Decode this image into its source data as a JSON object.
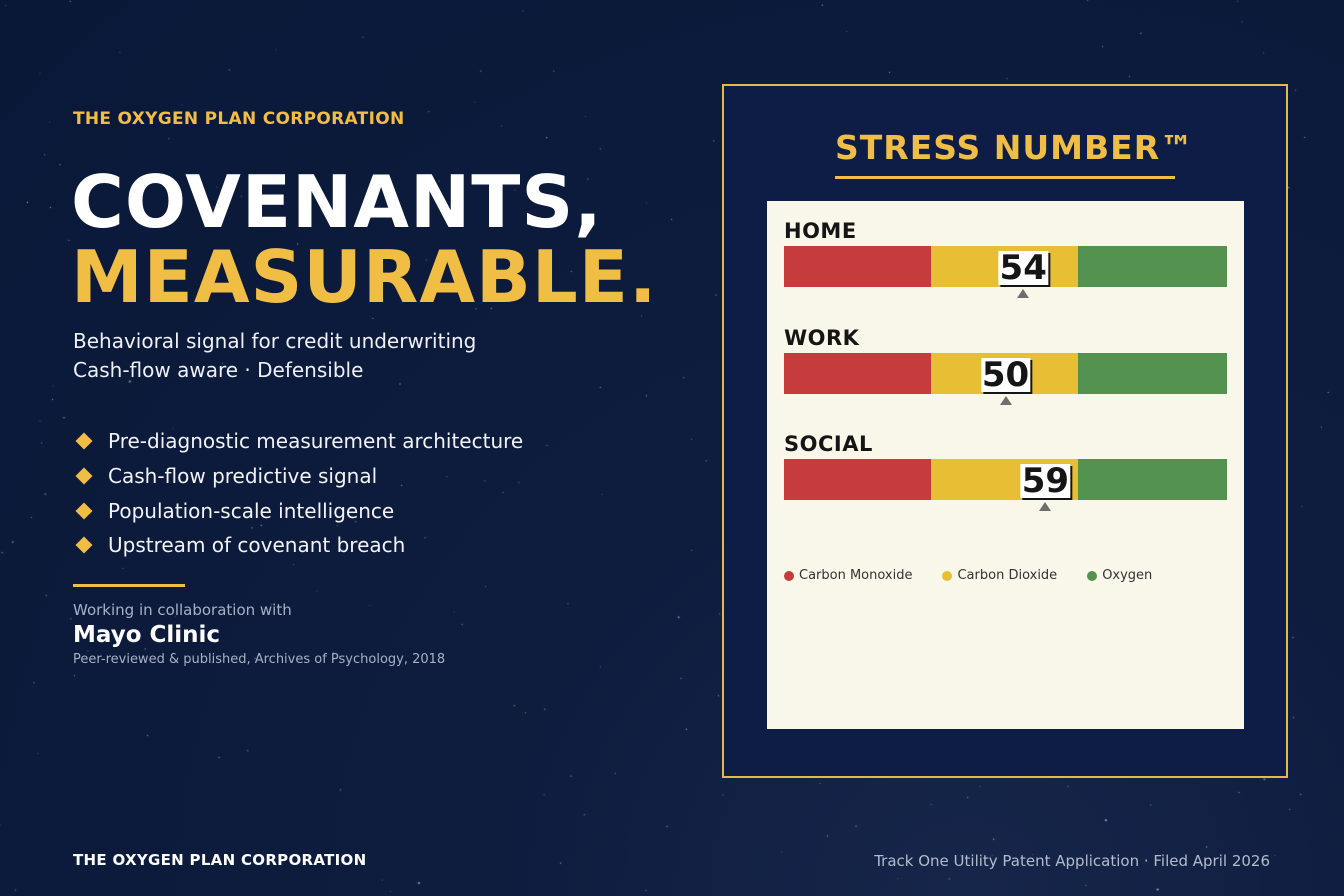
{
  "company": "THE OXYGEN PLAN CORPORATION",
  "headline": {
    "line1": "COVENANTS,",
    "line2": "MEASURABLE."
  },
  "subtitle": {
    "line1": "Behavioral signal for credit underwriting",
    "line2": "Cash-flow aware  ·  Defensible"
  },
  "features": [
    "Pre-diagnostic measurement architecture",
    "Cash-flow predictive signal",
    "Population-scale intelligence",
    "Upstream of covenant breach"
  ],
  "collaboration": {
    "label": "Working in collaboration with",
    "partner": "Mayo Clinic",
    "note": "Peer-reviewed & published, Archives of Psychology, 2018"
  },
  "card": {
    "title": "STRESS NUMBER™",
    "scale_max": 100,
    "metrics": [
      {
        "label": "HOME",
        "score": "54",
        "value": 54
      },
      {
        "label": "WORK",
        "score": "50",
        "value": 50
      },
      {
        "label": "SOCIAL",
        "score": "59",
        "value": 59
      }
    ],
    "legend": [
      {
        "label": "Carbon Monoxide",
        "color": "#c63b3b"
      },
      {
        "label": "Carbon Dioxide",
        "color": "#e8be35"
      },
      {
        "label": "Oxygen",
        "color": "#54924f"
      }
    ]
  },
  "footer": {
    "brand": "THE OXYGEN PLAN CORPORATION",
    "right": "Track One Utility Patent Application  ·  Filed April 2026"
  },
  "colors": {
    "accent": "#f0bd45",
    "background": "#0a1838",
    "panel": "#f9f7ea"
  }
}
